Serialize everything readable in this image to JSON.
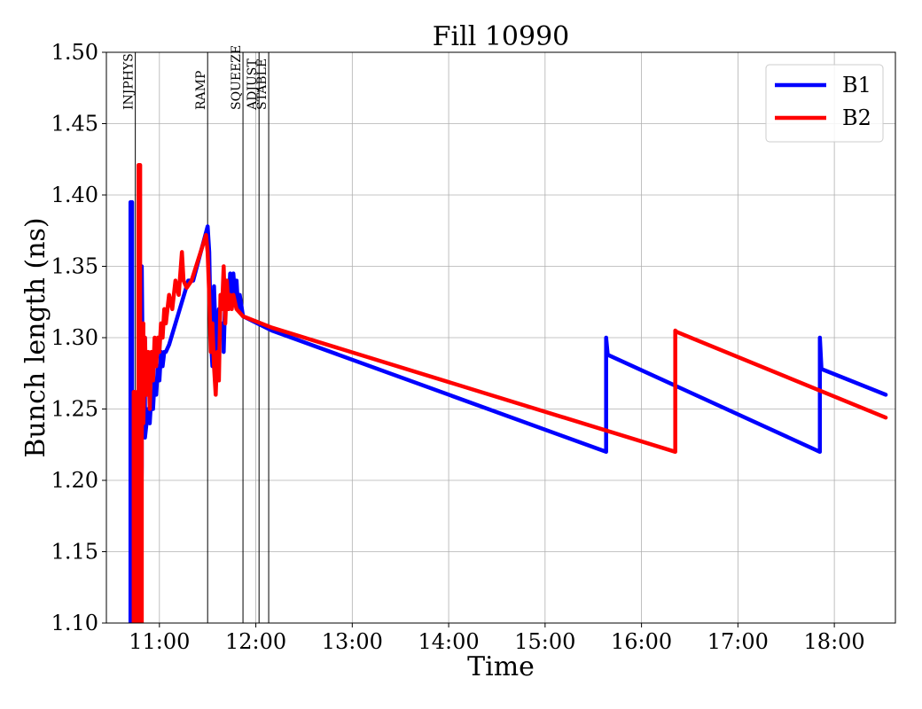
{
  "chart_data": {
    "type": "line",
    "title": "Fill 10990",
    "xlabel": "Time",
    "ylabel": "Bunch length (ns)",
    "xlim": [
      "10:27",
      "18:38"
    ],
    "ylim": [
      1.1,
      1.5
    ],
    "grid": true,
    "legend_position": "top-right",
    "x_ticks": [
      "11:00",
      "12:00",
      "13:00",
      "14:00",
      "15:00",
      "16:00",
      "17:00",
      "18:00"
    ],
    "y_ticks": [
      "1.10",
      "1.15",
      "1.20",
      "1.25",
      "1.30",
      "1.35",
      "1.40",
      "1.45",
      "1.50"
    ],
    "phases": [
      {
        "label": "INJPHYS",
        "x": "10:45"
      },
      {
        "label": "RAMP",
        "x": "11:30"
      },
      {
        "label": "SQUEEZE",
        "x": "11:52"
      },
      {
        "label": "ADJUST",
        "x": "12:02"
      },
      {
        "label": "STABLE",
        "x": "12:08"
      }
    ],
    "series": [
      {
        "name": "B1",
        "color": "#0000ff",
        "points": [
          [
            "10:42",
            1.1
          ],
          [
            "10:42",
            1.395
          ],
          [
            "10:43",
            1.395
          ],
          [
            "10:43",
            1.1
          ],
          [
            "10:46",
            1.1
          ],
          [
            "10:47",
            1.18
          ],
          [
            "10:47",
            1.24
          ],
          [
            "10:48",
            1.1
          ],
          [
            "10:49",
            1.21
          ],
          [
            "10:49",
            1.35
          ],
          [
            "10:50",
            1.23
          ],
          [
            "10:51",
            1.3
          ],
          [
            "10:51",
            1.23
          ],
          [
            "10:53",
            1.25
          ],
          [
            "10:54",
            1.24
          ],
          [
            "10:55",
            1.26
          ],
          [
            "10:56",
            1.25
          ],
          [
            "10:57",
            1.27
          ],
          [
            "10:58",
            1.26
          ],
          [
            "10:59",
            1.28
          ],
          [
            "11:00",
            1.27
          ],
          [
            "11:01",
            1.29
          ],
          [
            "11:02",
            1.28
          ],
          [
            "11:03",
            1.29
          ],
          [
            "11:04",
            1.29
          ],
          [
            "11:06",
            1.295
          ],
          [
            "11:18",
            1.34
          ],
          [
            "11:21",
            1.34
          ],
          [
            "11:30",
            1.378
          ],
          [
            "11:31",
            1.36
          ],
          [
            "11:32",
            1.3
          ],
          [
            "11:33",
            1.28
          ],
          [
            "11:34",
            1.336
          ],
          [
            "11:35",
            1.3
          ],
          [
            "11:36",
            1.29
          ],
          [
            "11:37",
            1.32
          ],
          [
            "11:38",
            1.3
          ],
          [
            "11:39",
            1.31
          ],
          [
            "11:40",
            1.3
          ],
          [
            "11:40",
            1.29
          ],
          [
            "11:41",
            1.33
          ],
          [
            "11:42",
            1.34
          ],
          [
            "11:43",
            1.32
          ],
          [
            "11:44",
            1.345
          ],
          [
            "11:45",
            1.33
          ],
          [
            "11:46",
            1.345
          ],
          [
            "11:47",
            1.33
          ],
          [
            "11:48",
            1.34
          ],
          [
            "11:49",
            1.32
          ],
          [
            "11:50",
            1.33
          ],
          [
            "11:52",
            1.315
          ],
          [
            "12:10",
            1.305
          ],
          [
            "15:38",
            1.22
          ],
          [
            "15:38",
            1.3
          ],
          [
            "15:39",
            1.288
          ],
          [
            "17:51",
            1.22
          ],
          [
            "17:51",
            1.3
          ],
          [
            "17:52",
            1.278
          ],
          [
            "18:32",
            1.26
          ]
        ]
      },
      {
        "name": "B2",
        "color": "#ff0000",
        "points": [
          [
            "10:44",
            1.1
          ],
          [
            "10:44",
            1.262
          ],
          [
            "10:45",
            1.262
          ],
          [
            "10:45",
            1.1
          ],
          [
            "10:47",
            1.1
          ],
          [
            "10:47",
            1.421
          ],
          [
            "10:48",
            1.421
          ],
          [
            "10:48",
            1.1
          ],
          [
            "10:49",
            1.1
          ],
          [
            "10:49",
            1.23
          ],
          [
            "10:50",
            1.31
          ],
          [
            "10:50",
            1.24
          ],
          [
            "10:51",
            1.3
          ],
          [
            "10:52",
            1.26
          ],
          [
            "10:53",
            1.29
          ],
          [
            "10:54",
            1.25
          ],
          [
            "10:55",
            1.29
          ],
          [
            "10:56",
            1.27
          ],
          [
            "10:57",
            1.3
          ],
          [
            "10:58",
            1.28
          ],
          [
            "10:59",
            1.3
          ],
          [
            "11:00",
            1.29
          ],
          [
            "11:01",
            1.31
          ],
          [
            "11:02",
            1.3
          ],
          [
            "11:03",
            1.32
          ],
          [
            "11:04",
            1.31
          ],
          [
            "11:06",
            1.33
          ],
          [
            "11:08",
            1.32
          ],
          [
            "11:10",
            1.34
          ],
          [
            "11:12",
            1.33
          ],
          [
            "11:14",
            1.36
          ],
          [
            "11:15",
            1.34
          ],
          [
            "11:17",
            1.335
          ],
          [
            "11:20",
            1.34
          ],
          [
            "11:29",
            1.372
          ],
          [
            "11:30",
            1.36
          ],
          [
            "11:31",
            1.33
          ],
          [
            "11:32",
            1.29
          ],
          [
            "11:33",
            1.31
          ],
          [
            "11:34",
            1.28
          ],
          [
            "11:35",
            1.26
          ],
          [
            "11:36",
            1.29
          ],
          [
            "11:37",
            1.27
          ],
          [
            "11:38",
            1.33
          ],
          [
            "11:39",
            1.32
          ],
          [
            "11:40",
            1.35
          ],
          [
            "11:41",
            1.31
          ],
          [
            "11:42",
            1.34
          ],
          [
            "11:43",
            1.32
          ],
          [
            "11:44",
            1.33
          ],
          [
            "11:45",
            1.32
          ],
          [
            "11:46",
            1.33
          ],
          [
            "11:48",
            1.32
          ],
          [
            "11:52",
            1.315
          ],
          [
            "12:10",
            1.307
          ],
          [
            "16:21",
            1.22
          ],
          [
            "16:21",
            1.305
          ],
          [
            "16:22",
            1.304
          ],
          [
            "18:32",
            1.244
          ]
        ]
      }
    ]
  }
}
